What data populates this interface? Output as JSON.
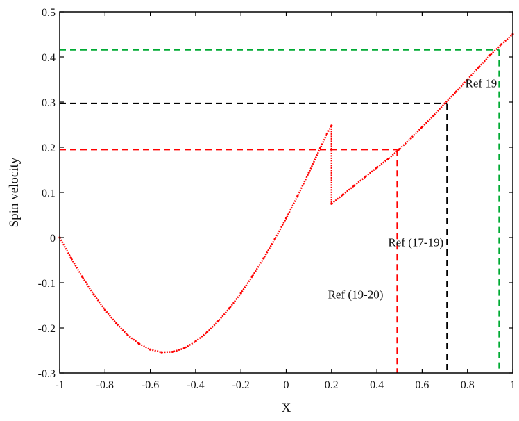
{
  "chart_data": {
    "type": "line",
    "title": "",
    "xlabel": "X",
    "ylabel": "Spin velocity",
    "xlim": [
      -1,
      1
    ],
    "ylim": [
      -0.3,
      0.5
    ],
    "xticks": [
      "-1",
      "-0.8",
      "-0.6",
      "-0.4",
      "-0.2",
      "0",
      "0.2",
      "0.4",
      "0.6",
      "0.8",
      "1"
    ],
    "yticks": [
      "-0.3",
      "-0.2",
      "-0.1",
      "0",
      "0.1",
      "0.2",
      "0.3",
      "0.4",
      "0.5"
    ],
    "grid": false,
    "series": [
      {
        "color": "#ff0000",
        "style": "dotted-line",
        "x": [
          -1,
          -0.95,
          -0.9,
          -0.85,
          -0.8,
          -0.75,
          -0.7,
          -0.65,
          -0.6,
          -0.55,
          -0.5,
          -0.45,
          -0.4,
          -0.35,
          -0.3,
          -0.25,
          -0.2,
          -0.15,
          -0.1,
          -0.05,
          0,
          0.05,
          0.1,
          0.15,
          0.18,
          0.2,
          0.2,
          0.25,
          0.3,
          0.35,
          0.4,
          0.45,
          0.5,
          0.55,
          0.6,
          0.65,
          0.7,
          0.75,
          0.8,
          0.85,
          0.9,
          0.95,
          1
        ],
        "y": [
          0,
          -0.045,
          -0.087,
          -0.126,
          -0.16,
          -0.19,
          -0.216,
          -0.235,
          -0.248,
          -0.254,
          -0.253,
          -0.245,
          -0.23,
          -0.21,
          -0.185,
          -0.156,
          -0.123,
          -0.086,
          -0.046,
          -0.003,
          0.043,
          0.092,
          0.144,
          0.198,
          0.23,
          0.248,
          0.075,
          0.095,
          0.115,
          0.135,
          0.155,
          0.174,
          0.196,
          0.22,
          0.245,
          0.27,
          0.297,
          0.323,
          0.35,
          0.377,
          0.404,
          0.428,
          0.45
        ]
      }
    ],
    "reference_lines": [
      {
        "label": "Ref (19-20)",
        "color": "#ff0000",
        "x": 0.49,
        "y": 0.195
      },
      {
        "label": "Ref (17-19)",
        "color": "#000000",
        "x": 0.71,
        "y": 0.297
      },
      {
        "label": "Ref 19",
        "color": "#00aa33",
        "x": 0.94,
        "y": 0.416
      }
    ]
  }
}
